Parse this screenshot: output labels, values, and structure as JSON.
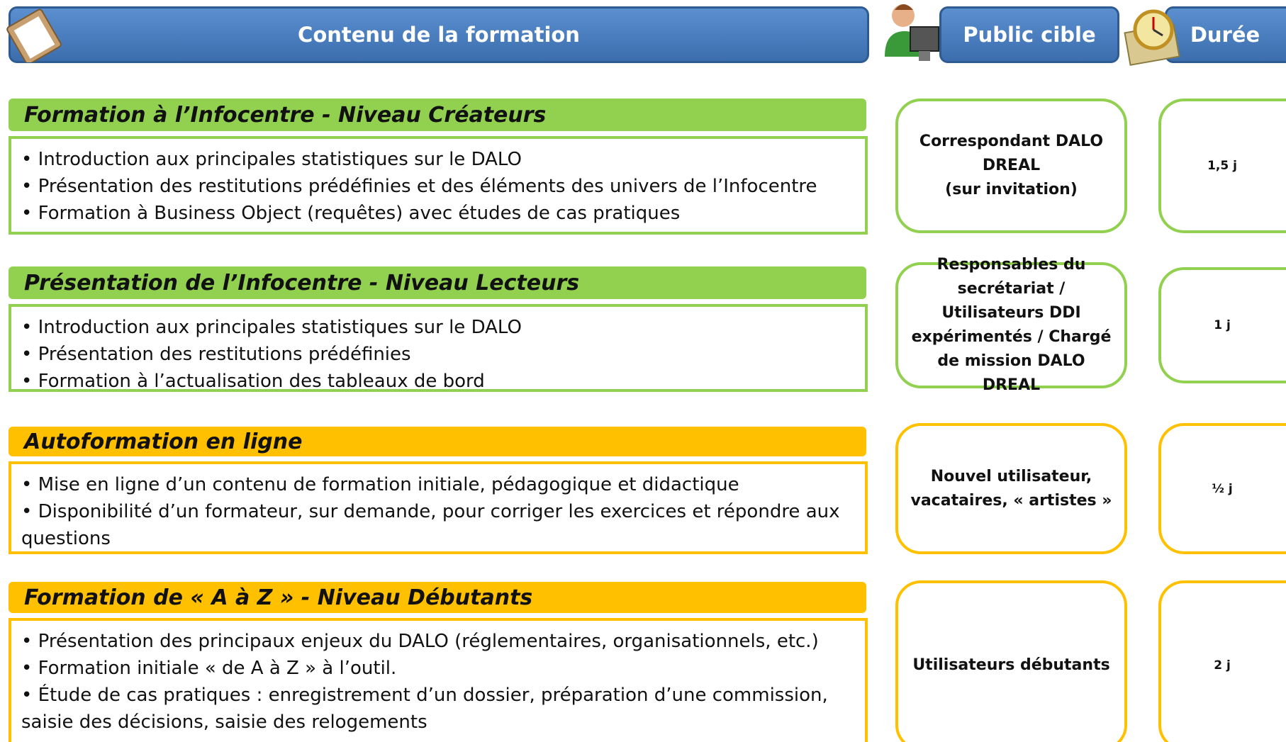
{
  "header": {
    "content": "Contenu de la formation",
    "audience": "Public cible",
    "duration": "Durée"
  },
  "sections": [
    {
      "title": "Formation à l’Infocentre - Niveau Créateurs",
      "items": [
        "Introduction aux principales statistiques sur le DALO",
        "Présentation des restitutions prédéfinies et des éléments des univers de l’Infocentre",
        "Formation à Business Object (requêtes) avec études de cas pratiques"
      ],
      "audience": [
        "Correspondant DALO",
        "DREAL",
        "(sur invitation)"
      ],
      "duration": "1,5 j"
    },
    {
      "title": "Présentation de l’Infocentre - Niveau Lecteurs",
      "items": [
        "Introduction aux principales statistiques sur le DALO",
        "Présentation des restitutions prédéfinies",
        "Formation à l’actualisation des tableaux de bord"
      ],
      "audience": [
        "Responsables du secrétariat / Utilisateurs DDI expérimentés / Chargé de mission DALO DREAL"
      ],
      "duration": "1 j"
    },
    {
      "title": "Autoformation en ligne",
      "items": [
        "Mise en ligne d’un contenu de formation initiale, pédagogique et didactique",
        "Disponibilité d’un formateur, sur demande, pour corriger les exercices et répondre aux questions"
      ],
      "audience": [
        "Nouvel utilisateur, vacataires, « artistes »"
      ],
      "duration": "½ j"
    },
    {
      "title": "Formation de « A à Z » - Niveau Débutants",
      "items": [
        "Présentation des principaux enjeux du DALO (réglementaires, organisationnels, etc.)",
        "Formation initiale « de A à Z » à l’outil.",
        "Étude de cas pratiques : enregistrement d’un dossier, préparation d’une commission, saisie des décisions, saisie des relogements"
      ],
      "audience": [
        "Utilisateurs débutants"
      ],
      "duration": "2 j"
    }
  ]
}
